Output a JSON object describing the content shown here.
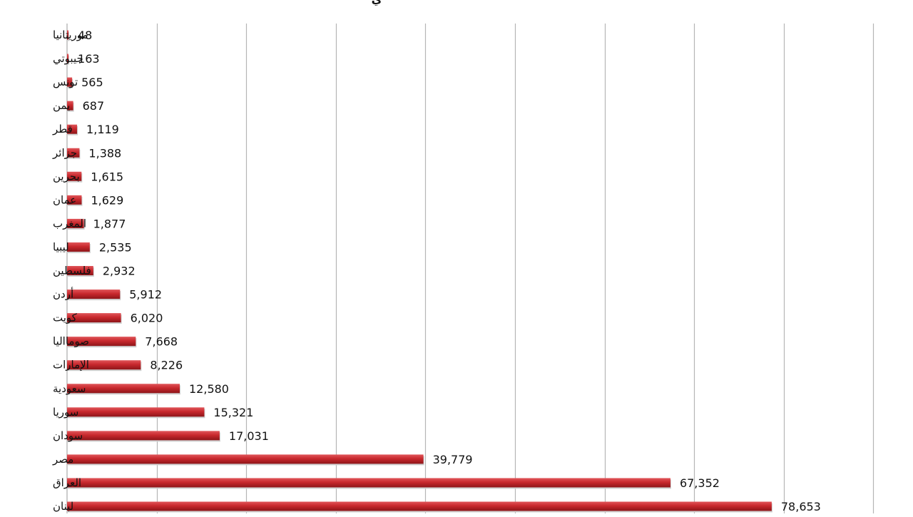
{
  "chart_data": {
    "type": "bar",
    "orientation": "horizontal",
    "title": "ي",
    "categories": [
      "موريتانيا",
      "جيبوتي",
      "تونس",
      "يمن",
      "قطر",
      "جزائر",
      "بحرين",
      "عمان",
      "المغرب",
      "ليبيا",
      "فلسطين",
      "أردن",
      "كويت",
      "صومااليا",
      "الإمارات",
      "سعودية",
      "سوريا",
      "سودان",
      "مصر",
      "العراق",
      "لبنان"
    ],
    "values": [
      48,
      163,
      565,
      687,
      1119,
      1388,
      1615,
      1629,
      1877,
      2535,
      2932,
      5912,
      6020,
      7668,
      8226,
      12580,
      15321,
      17031,
      39779,
      67352,
      78653
    ],
    "data_labels": [
      "48",
      "163",
      "565",
      "687",
      "1,119",
      "1,388",
      "1,615",
      "1,629",
      "1,877",
      "2,535",
      "2,932",
      "5,912",
      "6,020",
      "7,668",
      "8,226",
      "12,580",
      "15,321",
      "17,031",
      "39,779",
      "67,352",
      "78,653"
    ],
    "xlim": [
      0,
      90000
    ],
    "x_gridline_step": 10000,
    "grid": true,
    "legend": "none",
    "bar_color": "#c8282d"
  }
}
